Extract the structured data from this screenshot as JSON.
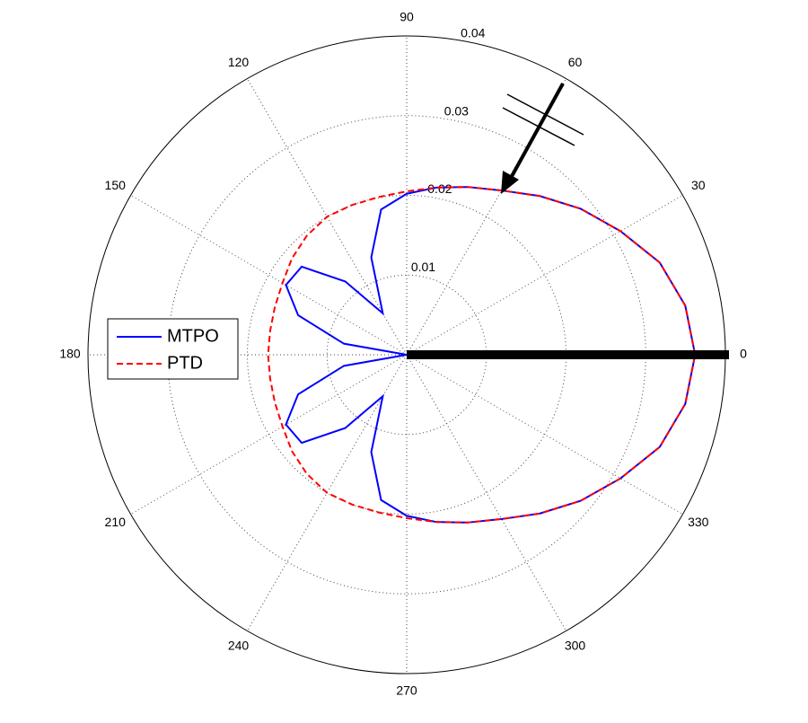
{
  "chart_data": {
    "type": "polar",
    "theta": [
      0,
      10,
      20,
      30,
      40,
      50,
      60,
      70,
      80,
      90,
      100,
      110,
      120,
      130,
      140,
      150,
      160,
      170,
      180,
      190,
      200,
      210,
      220,
      230,
      240,
      250,
      260,
      270,
      280,
      290,
      300,
      310,
      320,
      330,
      340,
      350
    ],
    "series": [
      {
        "name": "MTPO",
        "color": "#0000ff",
        "linestyle": "solid",
        "values": [
          0.0362,
          0.0355,
          0.0338,
          0.031,
          0.0285,
          0.026,
          0.0238,
          0.0224,
          0.0213,
          0.0202,
          0.0185,
          0.013,
          0.006,
          0.012,
          0.0172,
          0.0175,
          0.0145,
          0.008,
          0,
          0.008,
          0.0145,
          0.0175,
          0.0172,
          0.012,
          0.006,
          0.013,
          0.0185,
          0.0202,
          0.0213,
          0.0224,
          0.0238,
          0.026,
          0.0285,
          0.031,
          0.0338,
          0.0355
        ]
      },
      {
        "name": "PTD",
        "color": "#ff0000",
        "linestyle": "dashed",
        "values": [
          0.0362,
          0.0355,
          0.0338,
          0.031,
          0.0285,
          0.026,
          0.0238,
          0.0224,
          0.0213,
          0.0205,
          0.0201,
          0.02,
          0.02,
          0.0195,
          0.0188,
          0.018,
          0.0176,
          0.0174,
          0.0174,
          0.0174,
          0.0176,
          0.018,
          0.0188,
          0.0195,
          0.02,
          0.02,
          0.0201,
          0.0205,
          0.0213,
          0.0224,
          0.0238,
          0.026,
          0.0285,
          0.031,
          0.0338,
          0.0355
        ]
      }
    ],
    "rlim": [
      0,
      0.04
    ],
    "rticks": [
      0.01,
      0.02,
      0.03,
      0.04
    ],
    "thetaticks": [
      0,
      30,
      60,
      90,
      120,
      150,
      180,
      210,
      240,
      270,
      300,
      330
    ],
    "grid": true,
    "legend": "left"
  }
}
